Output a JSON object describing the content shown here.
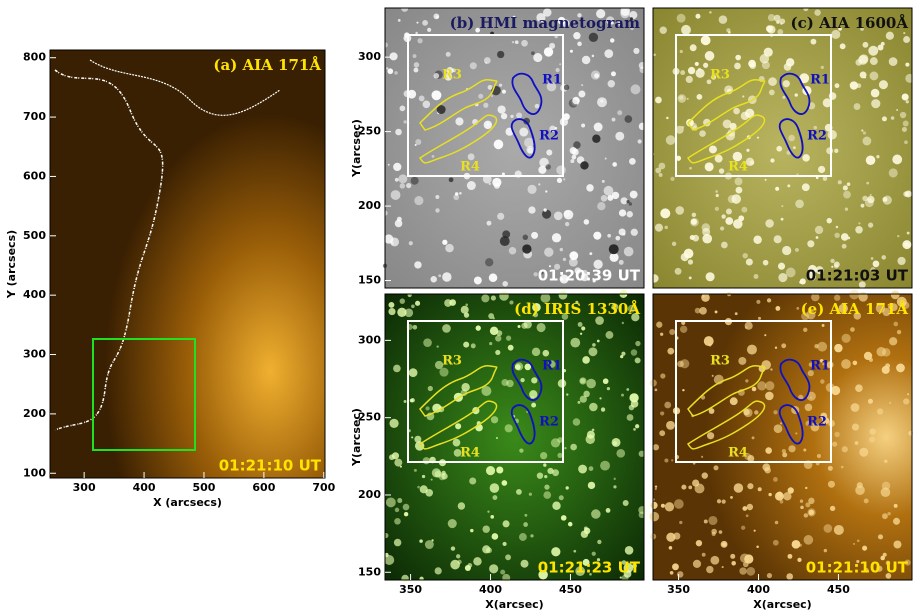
{
  "panels": [
    {
      "title": "(a) AIA 171Å",
      "time": "01:21:10 UT",
      "xlabel": "X (arcsecs)",
      "ylabel": "Y (arcsecs)",
      "xlim": [
        243,
        702
      ],
      "ylim": [
        92,
        813
      ],
      "xticks": [
        300,
        400,
        500,
        600,
        700
      ],
      "yticks": [
        100,
        200,
        300,
        400,
        500,
        600,
        700,
        800
      ]
    },
    {
      "title": "(b) HMI magnetogram",
      "time": "01:20:39 UT",
      "ylabel": "Y(arcsec)",
      "xlim": [
        334,
        496
      ],
      "ylim": [
        145,
        333
      ],
      "yticks": [
        150,
        200,
        250,
        300
      ],
      "regions": [
        "R1",
        "R2",
        "R3",
        "R4"
      ]
    },
    {
      "title": "(c) AIA 1600Å",
      "time": "01:21:03 UT",
      "xlim": [
        334,
        496
      ],
      "ylim": [
        145,
        333
      ],
      "regions": [
        "R1",
        "R2",
        "R3",
        "R4"
      ]
    },
    {
      "title": "(d) IRIS 1330Å",
      "time": "01:21:23 UT",
      "xlabel": "X(arcsec)",
      "ylabel": "Y(arcsec)",
      "xlim": [
        334,
        496
      ],
      "ylim": [
        145,
        330
      ],
      "xticks": [
        350,
        400,
        450
      ],
      "yticks": [
        150,
        200,
        250,
        300
      ],
      "regions": [
        "R1",
        "R2",
        "R3",
        "R4"
      ]
    },
    {
      "title": "(e) AIA 171Å",
      "time": "01:21:10 UT",
      "xlabel": "X(arcsec)",
      "xlim": [
        334,
        496
      ],
      "ylim": [
        145,
        330
      ],
      "xticks": [
        350,
        400,
        450
      ],
      "regions": [
        "R1",
        "R2",
        "R3",
        "R4"
      ]
    }
  ]
}
